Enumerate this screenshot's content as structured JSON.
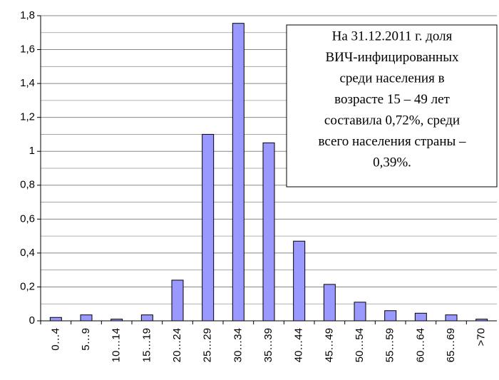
{
  "chart_data": {
    "type": "bar",
    "categories": [
      "0…4",
      "5…9",
      "10…14",
      "15…19",
      "20…24",
      "25…29",
      "30…34",
      "35…39",
      "40…44",
      "45…49",
      "50…54",
      "55…59",
      "60…64",
      "65…69",
      ">70"
    ],
    "values": [
      0.02,
      0.035,
      0.01,
      0.035,
      0.24,
      1.1,
      1.755,
      1.05,
      0.47,
      0.215,
      0.11,
      0.06,
      0.045,
      0.035,
      0.01
    ],
    "color": "#9999ff",
    "ylim": [
      0,
      1.8
    ],
    "yticks": [
      0,
      {
        "value": 0.2,
        "label": "0,2"
      },
      {
        "value": 0.4,
        "label": "0,4"
      },
      {
        "value": 0.6,
        "label": "0,6"
      },
      {
        "value": 0.8,
        "label": "0,8"
      },
      1,
      {
        "value": 1.2,
        "label": "1,2"
      },
      {
        "value": 1.4,
        "label": "1,4"
      },
      {
        "value": 1.6,
        "label": "1,6"
      },
      {
        "value": 1.8,
        "label": "1,8"
      }
    ],
    "yminor": [
      0.1,
      0.3,
      0.5,
      0.7,
      0.9,
      1.1,
      1.3,
      1.5,
      1.7
    ],
    "grid": true,
    "annotation": [
      "На 31.12.2011 г. доля",
      "ВИЧ-инфицированных",
      "среди населения в",
      "возрасте 15 – 49 лет",
      "составила 0,72%, среди",
      "всего населения страны –",
      "0,39%."
    ]
  }
}
